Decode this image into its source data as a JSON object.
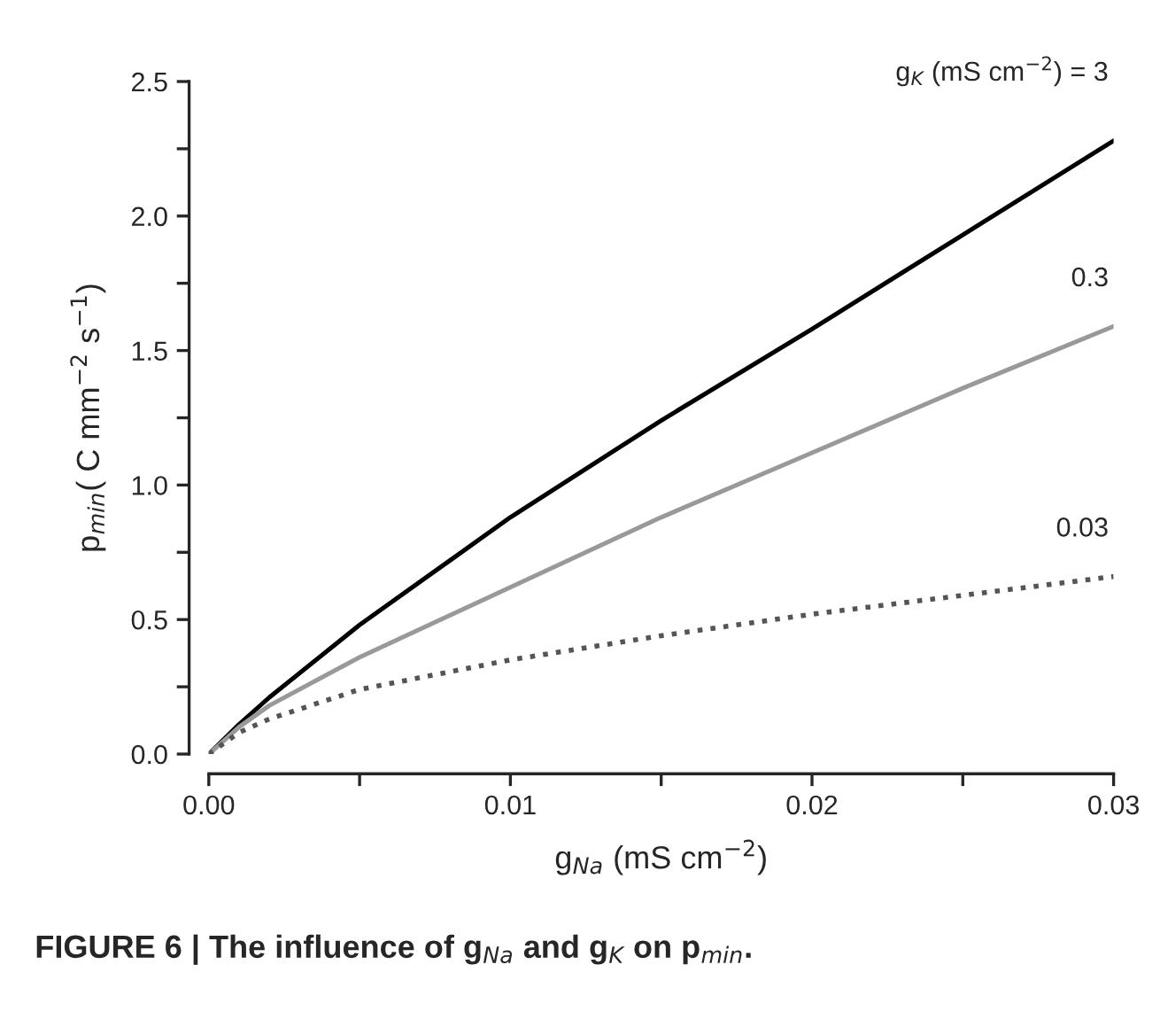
{
  "chart_data": {
    "type": "line",
    "xlabel": "g$_{Na}$ (mS cm$^{−2}$)",
    "ylabel": "p$_{min}$( C mm$^{−2}$ s$^{−1}$)",
    "x": [
      0,
      0.001,
      0.002,
      0.005,
      0.01,
      0.015,
      0.02,
      0.025,
      0.03
    ],
    "series": [
      {
        "name": "g$_{K}$ (mS cm$^{−2}$) = 3",
        "color": "#000000",
        "line_style": "solid",
        "values": [
          0,
          0.11,
          0.21,
          0.48,
          0.88,
          1.24,
          1.58,
          1.93,
          2.28
        ]
      },
      {
        "name": "0.3",
        "color": "#999999",
        "line_style": "solid",
        "values": [
          0,
          0.1,
          0.18,
          0.36,
          0.62,
          0.88,
          1.12,
          1.36,
          1.59
        ]
      },
      {
        "name": "0.03",
        "color": "#555555",
        "line_style": "dotted",
        "values": [
          0,
          0.08,
          0.13,
          0.24,
          0.35,
          0.44,
          0.52,
          0.59,
          0.66
        ]
      }
    ],
    "xlim": [
      0,
      0.03
    ],
    "ylim": [
      0,
      2.5
    ],
    "xticks": [
      {
        "value": 0,
        "label": "0.00"
      },
      {
        "value": 0.005,
        "label": null
      },
      0.01,
      {
        "value": 0.015,
        "label": null
      },
      0.02,
      {
        "value": 0.025,
        "label": null
      },
      0.03
    ],
    "yticks": [
      {
        "value": 0,
        "label": "0.0"
      },
      {
        "value": 0.25,
        "label": null
      },
      0.5,
      {
        "value": 0.75,
        "label": null
      },
      {
        "value": 1,
        "label": "1.0"
      },
      {
        "value": 1.25,
        "label": null
      },
      1.5,
      {
        "value": 1.75,
        "label": null
      },
      {
        "value": 2,
        "label": "2.0"
      },
      {
        "value": 2.25,
        "label": null
      },
      2.5
    ],
    "annotations": [
      "FIGURE 6 | The influence of g$_{Na}$ and g$_{K}$ on p$_{min}$."
    ],
    "grid": false,
    "legend": false
  }
}
